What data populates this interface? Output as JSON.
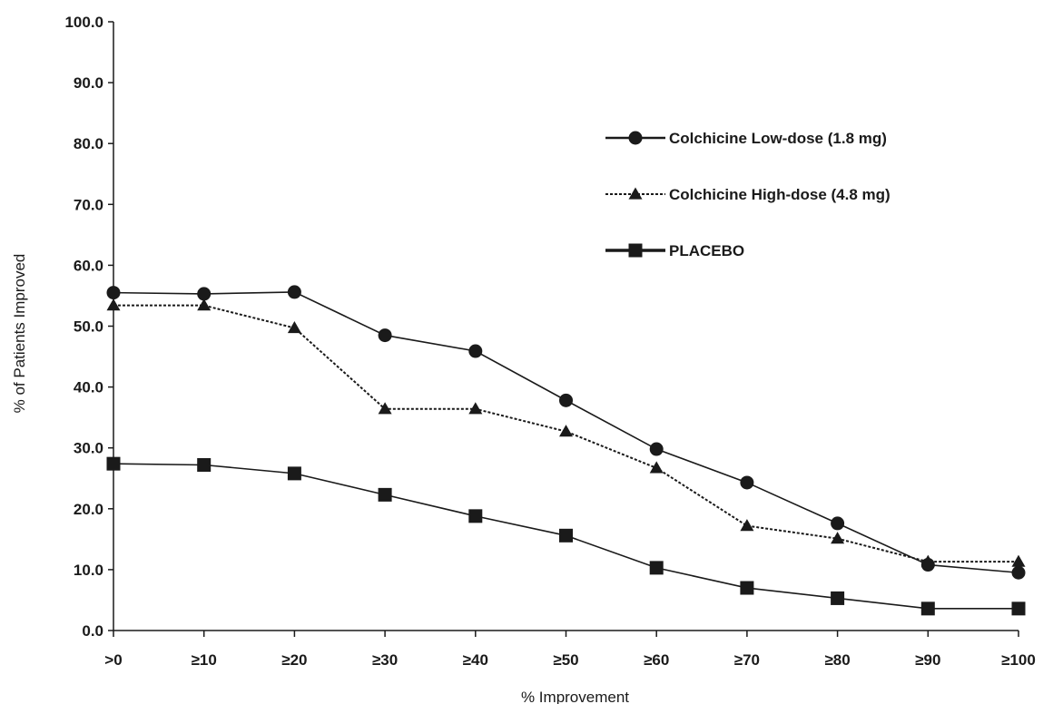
{
  "chart_data": {
    "type": "line",
    "title": "",
    "xlabel": "% Improvement",
    "ylabel": "% of Patients Improved",
    "categories": [
      ">0",
      "≥10",
      "≥20",
      "≥30",
      "≥40",
      "≥50",
      "≥60",
      "≥70",
      "≥80",
      "≥90",
      "≥100"
    ],
    "ylim": [
      0,
      100
    ],
    "yticks": [
      "0.0",
      "10.0",
      "20.0",
      "30.0",
      "40.0",
      "50.0",
      "60.0",
      "70.0",
      "80.0",
      "90.0",
      "100.0"
    ],
    "grid": false,
    "legend_position": "top-right",
    "series": [
      {
        "name": "Colchicine Low-dose (1.8 mg)",
        "marker": "circle",
        "line_style": "solid",
        "values": [
          55.5,
          55.3,
          55.6,
          48.5,
          45.9,
          37.8,
          29.8,
          24.3,
          17.6,
          10.8,
          9.5
        ]
      },
      {
        "name": "Colchicine High-dose (4.8 mg)",
        "marker": "triangle",
        "line_style": "dotted",
        "values": [
          53.4,
          53.4,
          49.7,
          36.4,
          36.4,
          32.7,
          26.7,
          17.2,
          15.1,
          11.3,
          11.3
        ]
      },
      {
        "name": "PLACEBO",
        "marker": "square",
        "line_style": "solid",
        "values": [
          27.4,
          27.2,
          25.8,
          22.3,
          18.8,
          15.6,
          10.3,
          7.0,
          5.3,
          3.6,
          3.6
        ]
      }
    ]
  }
}
